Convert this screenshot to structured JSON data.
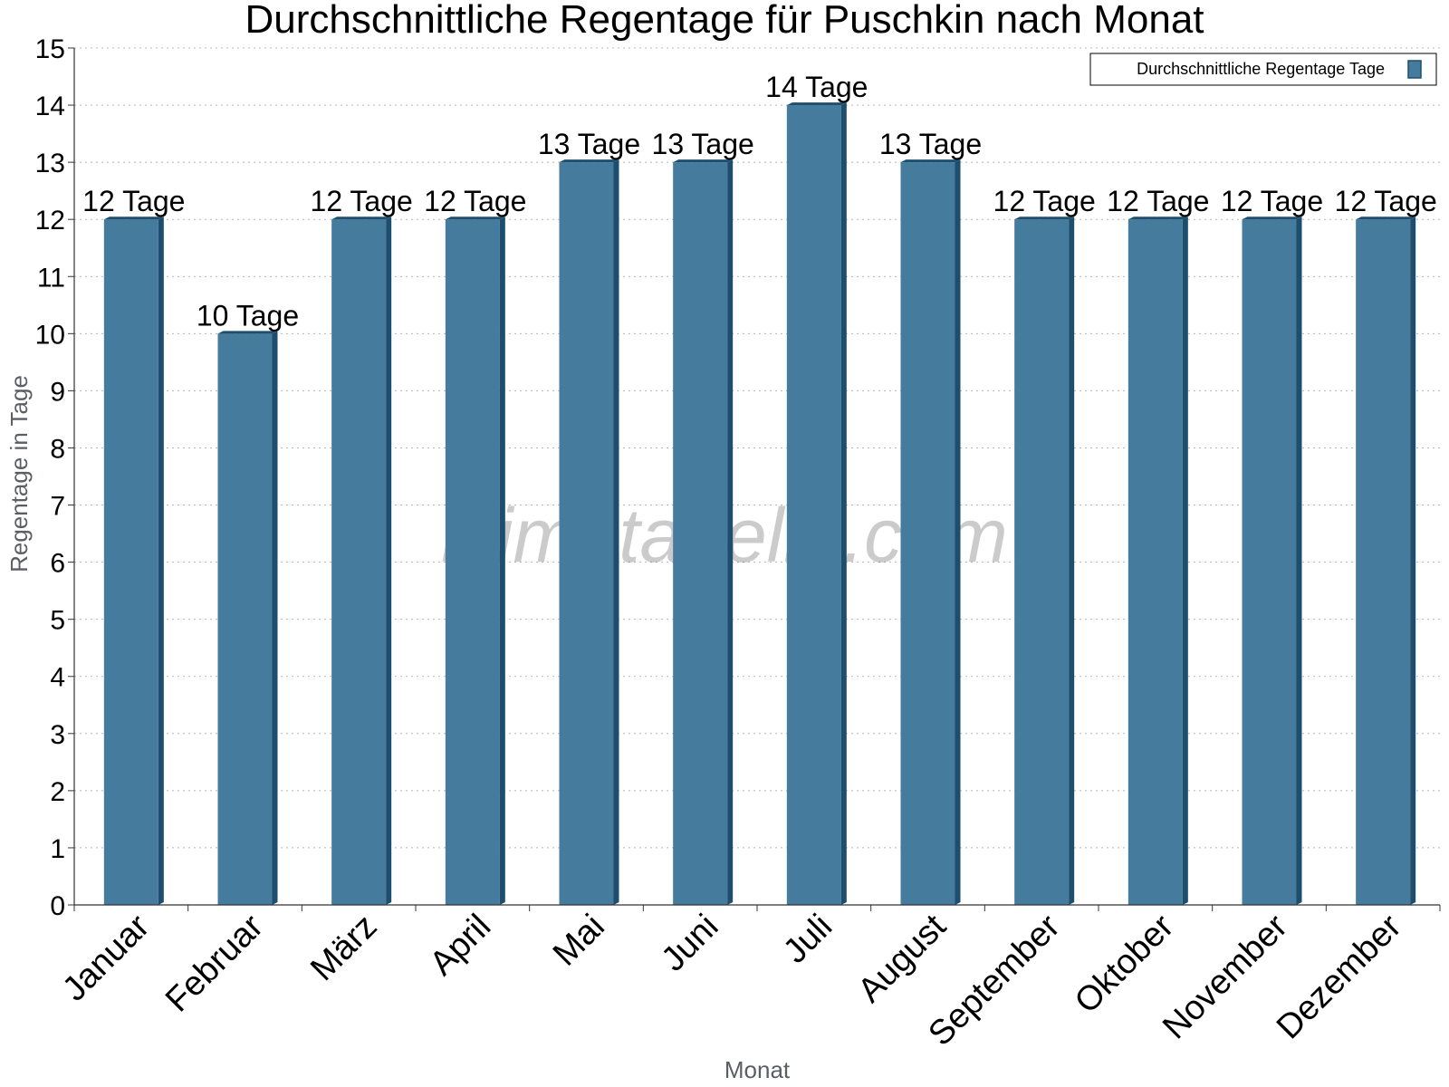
{
  "chart_data": {
    "type": "bar",
    "title": "Durchschnittliche Regentage für Puschkin nach Monat",
    "xlabel": "Monat",
    "ylabel": "Regentage in Tage",
    "ylim": [
      0,
      15
    ],
    "y_ticks": [
      "0",
      "1",
      "2",
      "3",
      "4",
      "5",
      "6",
      "7",
      "8",
      "9",
      "10",
      "11",
      "12",
      "13",
      "14",
      "15"
    ],
    "grid": true,
    "legend_position": "top-right",
    "categories": [
      "Januar",
      "Februar",
      "März",
      "April",
      "Mai",
      "Juni",
      "Juli",
      "August",
      "September",
      "Oktober",
      "November",
      "Dezember"
    ],
    "series": [
      {
        "name": "Durchschnittliche Regentage Tage",
        "values": [
          12,
          10,
          12,
          12,
          13,
          13,
          14,
          13,
          12,
          12,
          12,
          12
        ],
        "labels": [
          "12 Tage",
          "10 Tage",
          "12 Tage",
          "12 Tage",
          "13 Tage",
          "13 Tage",
          "14 Tage",
          "13 Tage",
          "12 Tage",
          "12 Tage",
          "12 Tage",
          "12 Tage"
        ],
        "color": "#457b9d",
        "edge_color": "#1d4e6e"
      }
    ]
  },
  "watermark": "klimatabelle.com"
}
